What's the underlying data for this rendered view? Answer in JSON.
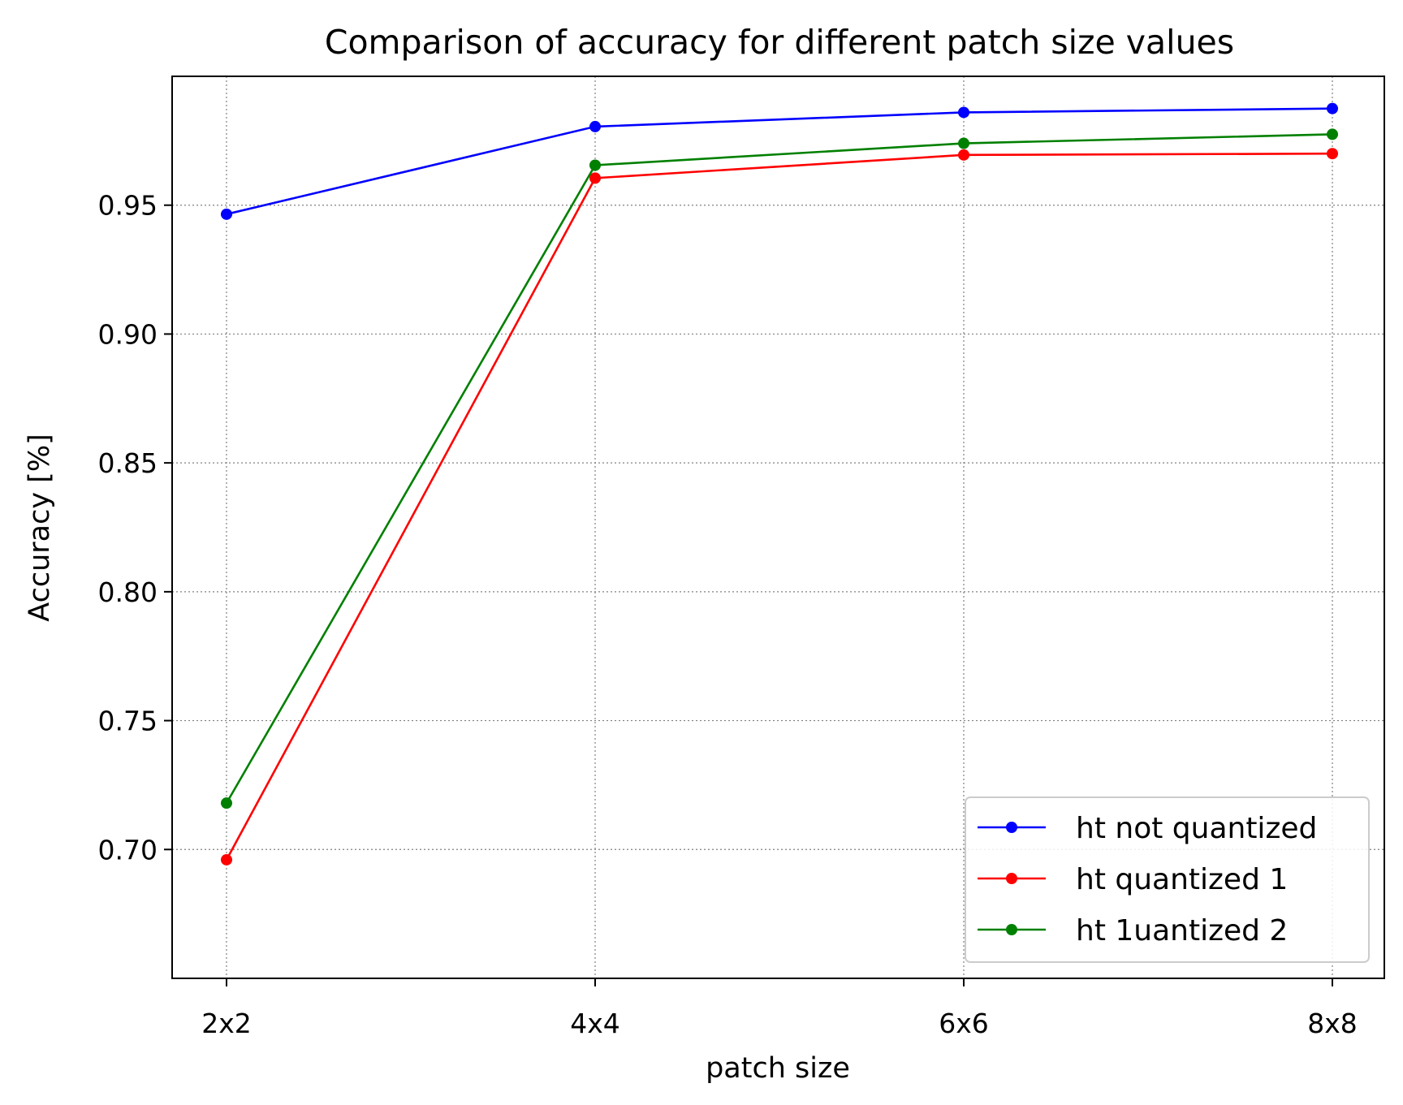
{
  "chart_data": {
    "type": "line",
    "title": "Comparison of accuracy for different patch size values",
    "xlabel": "patch size",
    "ylabel": "Accuracy [%]",
    "categories": [
      "2x2",
      "4x4",
      "6x6",
      "8x8"
    ],
    "ylim": [
      0.65,
      1.0
    ],
    "yticks": [
      0.7,
      0.75,
      0.8,
      0.85,
      0.9,
      0.95
    ],
    "ytick_labels": [
      "0.70",
      "0.75",
      "0.80",
      "0.85",
      "0.90",
      "0.95"
    ],
    "grid": true,
    "legend_position": "lower-right",
    "series": [
      {
        "name": "ht not quantized",
        "color": "#0000ff",
        "values": [
          0.9465,
          0.9805,
          0.986,
          0.9875
        ]
      },
      {
        "name": "ht quantized 1",
        "color": "#ff0000",
        "values": [
          0.696,
          0.9605,
          0.9695,
          0.97
        ]
      },
      {
        "name": "ht 1uantized 2",
        "color": "#008000",
        "values": [
          0.718,
          0.9655,
          0.974,
          0.9775
        ]
      }
    ]
  }
}
